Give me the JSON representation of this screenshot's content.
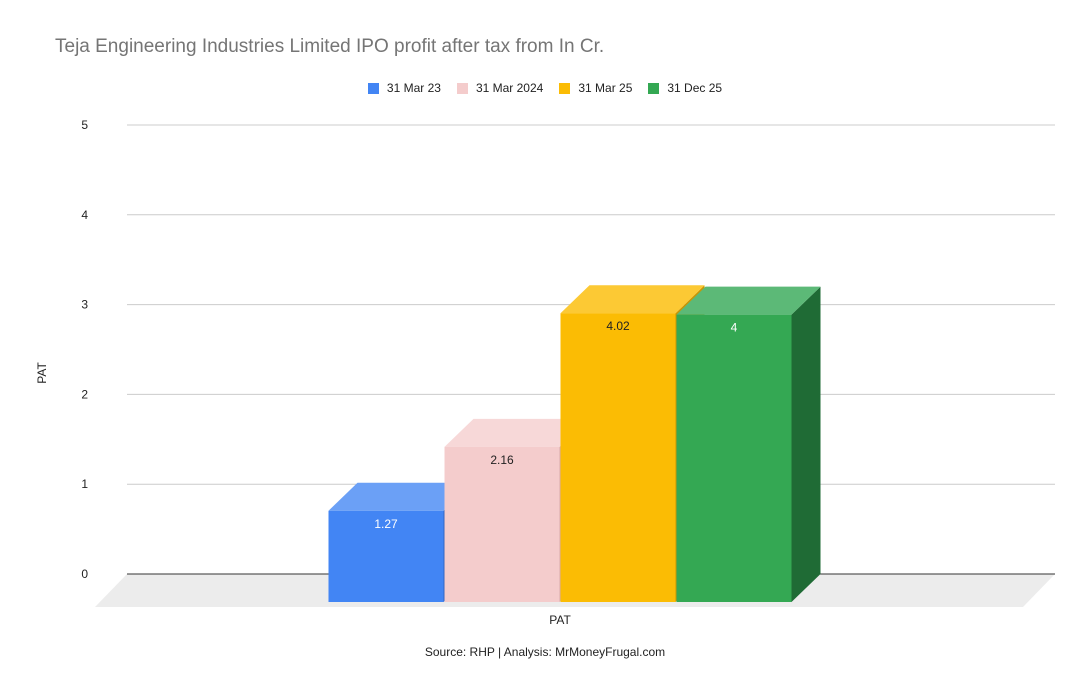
{
  "chart_data": {
    "type": "bar",
    "title": "Teja Engineering Industries Limited IPO profit after tax from In Cr.",
    "categories": [
      "PAT"
    ],
    "xlabel": "PAT",
    "ylabel": "PAT",
    "ylim": [
      0,
      5
    ],
    "yticks": [
      "0",
      "1",
      "2",
      "3",
      "4",
      "5"
    ],
    "grid": true,
    "legend_position": "top",
    "series": [
      {
        "name": "31 Mar 23",
        "values": [
          1.27
        ],
        "label": "1.27",
        "color": "#4285f4",
        "top_color": "#6ba0f6",
        "side_color": "#3366c2",
        "label_color": "#ffffff"
      },
      {
        "name": "31 Mar 2024",
        "values": [
          2.16
        ],
        "label": "2.16",
        "color": "#f4cccc",
        "top_color": "#f7d8d8",
        "side_color": "#d8aaaa",
        "label_color": "#222222"
      },
      {
        "name": "31 Mar 25",
        "values": [
          4.02
        ],
        "label": "4.02",
        "color": "#fbbc04",
        "top_color": "#fcc934",
        "side_color": "#c99603",
        "label_color": "#222222"
      },
      {
        "name": "31 Dec 25",
        "values": [
          4
        ],
        "label": "4",
        "color": "#34a853",
        "top_color": "#5cb977",
        "side_color": "#1f6b35",
        "label_color": "#ffffff"
      }
    ]
  },
  "source_text": "Source: RHP | Analysis: MrMoneyFrugal.com"
}
